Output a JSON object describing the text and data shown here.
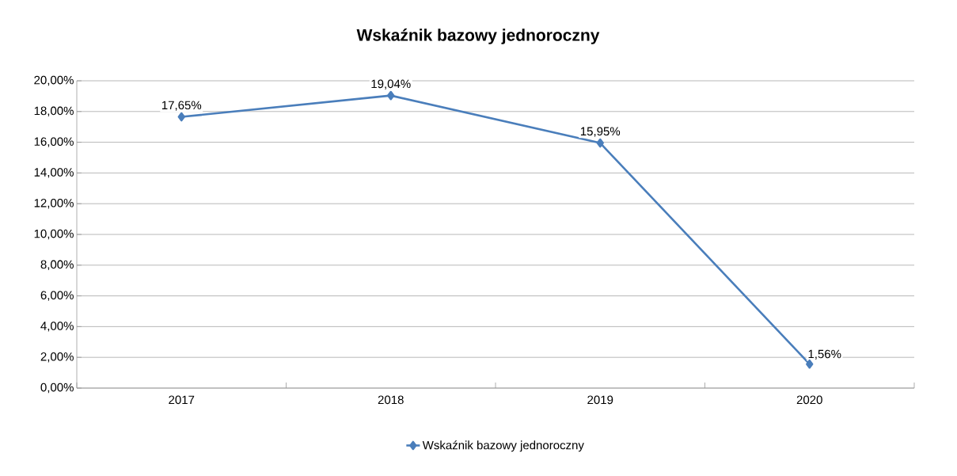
{
  "chart_data": {
    "type": "line",
    "title": "Wskaźnik bazowy jednoroczny",
    "categories": [
      "2017",
      "2018",
      "2019",
      "2020"
    ],
    "series": [
      {
        "name": "Wskaźnik bazowy jednoroczny",
        "color": "#4a7ebb",
        "values": [
          17.65,
          19.04,
          15.95,
          1.56
        ],
        "value_labels": [
          "17,65%",
          "19,04%",
          "15,95%",
          "1,56%"
        ]
      }
    ],
    "ylim": [
      0,
      20
    ],
    "yticks": [
      {
        "value": 0,
        "label": "0,00%"
      },
      {
        "value": 2,
        "label": "2,00%"
      },
      {
        "value": 4,
        "label": "4,00%"
      },
      {
        "value": 6,
        "label": "6,00%"
      },
      {
        "value": 8,
        "label": "8,00%"
      },
      {
        "value": 10,
        "label": "10,00%"
      },
      {
        "value": 12,
        "label": "12,00%"
      },
      {
        "value": 14,
        "label": "14,00%"
      },
      {
        "value": 16,
        "label": "16,00%"
      },
      {
        "value": 18,
        "label": "18,00%"
      },
      {
        "value": 20,
        "label": "20,00%"
      }
    ],
    "grid": "y",
    "legend": "bottom",
    "marker": "diamond",
    "line_style": "solid"
  }
}
